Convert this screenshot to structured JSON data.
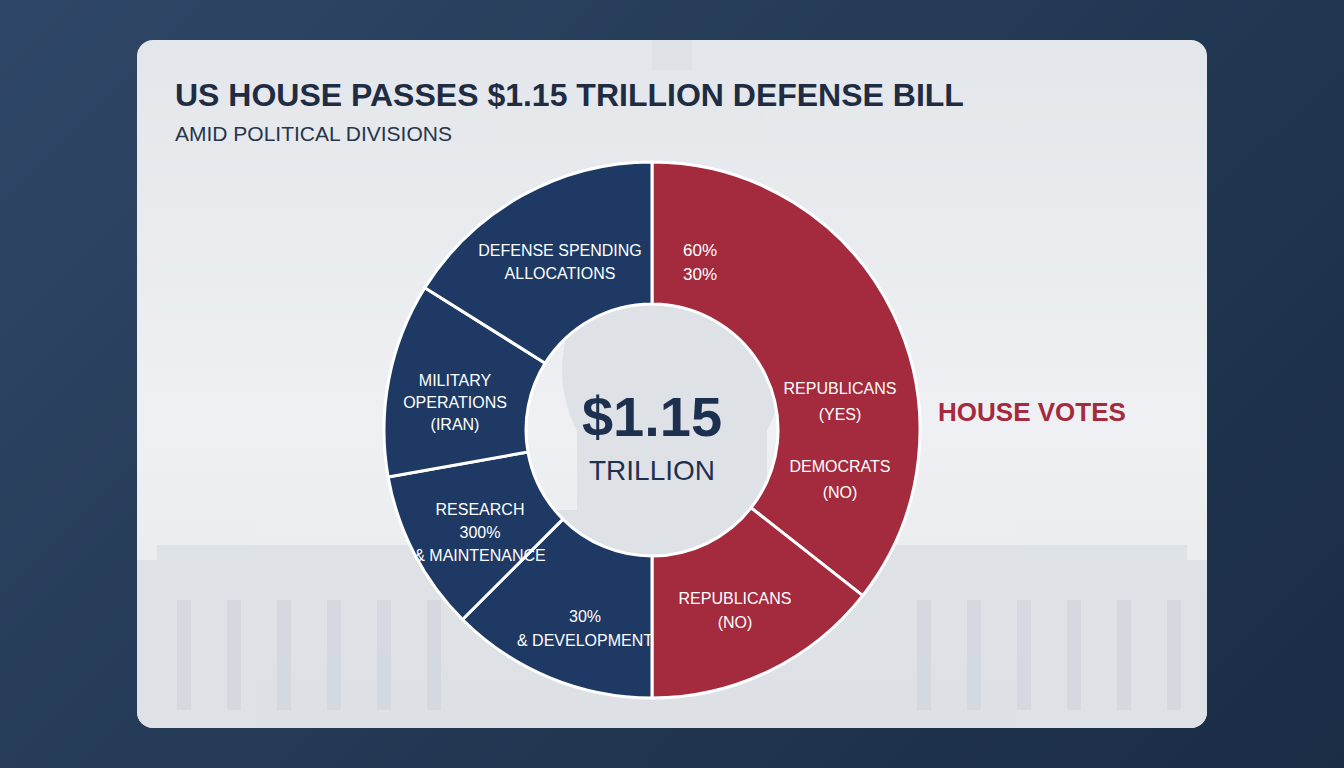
{
  "chart_data": {
    "type": "pie",
    "title": "US HOUSE PASSES $1.15 TRILLION DEFENSE BILL",
    "subtitle": "AMID POLITICAL DIVISIONS",
    "categories": [
      "REPUBLICANS\n(YES)\n\nDEMOCRATS\n(NO)",
      "REPUBLICANS\n(NO)",
      "30%\n& DEVELOPMENT",
      "RESEARCH\n300%\n& MAINTENANCE",
      "MILITARY\nOPERATIONS\n(IRAN)",
      "DEFENSE SPENDING\nALLOCATIONS"
    ],
    "values": [
      35.6,
      14.4,
      12.5,
      9.7,
      11.7,
      16.1
    ],
    "colors": [
      "#a32b3d",
      "#a32b3d",
      "#1e3a64",
      "#1e3a64",
      "#1e3a64",
      "#1e3a64"
    ],
    "data_labels": false,
    "annotations": [
      "60%\n30%",
      "$1.15",
      "TRILLION",
      "HOUSE VOTES"
    ]
  }
}
